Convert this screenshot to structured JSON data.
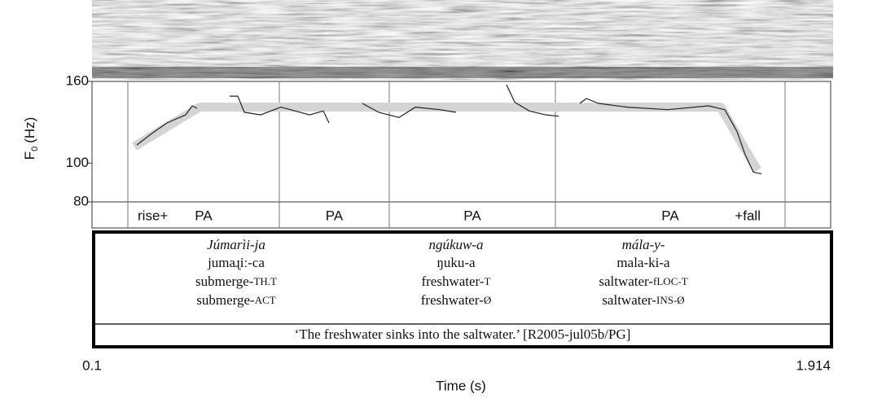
{
  "chart_data": {
    "type": "line",
    "y_label": {
      "symbol": "F",
      "subscript": "0",
      "unit": "(Hz)"
    },
    "x_label": "Time (s)",
    "xlim": [
      0.1,
      1.914
    ],
    "xticks": [
      0.1,
      1.914
    ],
    "ylim": [
      80,
      160
    ],
    "yticks": [
      80,
      100,
      160
    ],
    "log_scale": true,
    "series": [
      {
        "name": "stylized contour",
        "color": "#d4d4d4",
        "x": [
          0.204,
          0.364,
          1.644,
          1.734
        ],
        "values": [
          110,
          138,
          138,
          96
        ]
      },
      {
        "name": "F0 track",
        "color": "#222222",
        "x": [
          0.21,
          0.244,
          0.284,
          0.33,
          0.346,
          0.358,
          null,
          0.438,
          0.458,
          0.474,
          0.514,
          0.564,
          0.634,
          0.668,
          0.682,
          null,
          0.764,
          0.804,
          0.854,
          0.894,
          0.954,
          0.994,
          null,
          1.118,
          1.138,
          1.174,
          1.214,
          1.246,
          null,
          1.298,
          1.314,
          1.344,
          1.414,
          1.514,
          1.614,
          1.654,
          1.684,
          1.704,
          1.724,
          1.744
        ],
        "values": [
          111,
          118,
          126,
          132,
          139,
          137,
          null,
          147,
          147,
          134,
          132,
          138,
          132,
          135,
          126,
          null,
          141,
          134,
          130,
          138,
          136,
          134,
          null,
          157,
          142,
          135,
          132,
          131,
          null,
          141,
          145,
          141,
          138,
          136,
          139,
          136,
          120,
          105,
          95,
          94
        ]
      }
    ],
    "tier": [
      {
        "start": 0.188,
        "end": 0.56,
        "labels": [
          "rise+",
          "PA"
        ]
      },
      {
        "start": 0.56,
        "end": 0.83,
        "labels": [
          "PA"
        ]
      },
      {
        "start": 0.83,
        "end": 1.238,
        "labels": [
          "PA"
        ]
      },
      {
        "start": 1.238,
        "end": 1.802,
        "labels": [
          "PA",
          "+fall"
        ]
      }
    ],
    "gloss": {
      "columns": [
        {
          "word": "Júmarìi-ja",
          "phonemic": "jumaɻiː-ca",
          "gloss1": {
            "stem": "submerge-",
            "tag": "TH.T"
          },
          "gloss2": {
            "stem": "submerge-",
            "tag": "ACT"
          }
        },
        {
          "word": "ngúkuw-a",
          "phonemic": "ŋuku-a",
          "gloss1": {
            "stem": "freshwater-",
            "tag": "T"
          },
          "gloss2": {
            "stem": "freshwater-",
            "tag": "Ø"
          }
        },
        {
          "word": "mála-y-",
          "phonemic": "mala-ki-a",
          "gloss1": {
            "stem": "saltwater-",
            "tag": "fLOC-T"
          },
          "gloss2": {
            "stem": "saltwater-",
            "tag": "INS-Ø"
          }
        }
      ],
      "translation": "‘The freshwater sinks into the saltwater.’ [R2005-jul05b/PG]"
    }
  }
}
